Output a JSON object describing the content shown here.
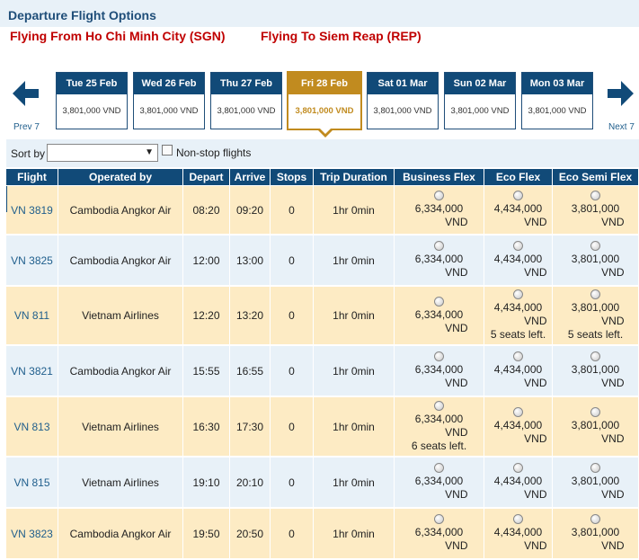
{
  "header": {
    "title": "Departure Flight Options",
    "from": "Flying From Ho Chi Minh City (SGN)",
    "to": "Flying To Siem Reap (REP)"
  },
  "nav": {
    "prev": "Prev 7",
    "next": "Next 7"
  },
  "dates": [
    {
      "label": "Tue 25 Feb",
      "price": "3,801,000 VND",
      "selected": false
    },
    {
      "label": "Wed 26 Feb",
      "price": "3,801,000 VND",
      "selected": false
    },
    {
      "label": "Thu 27 Feb",
      "price": "3,801,000 VND",
      "selected": false
    },
    {
      "label": "Fri 28 Feb",
      "price": "3,801,000 VND",
      "selected": true
    },
    {
      "label": "Sat 01 Mar",
      "price": "3,801,000 VND",
      "selected": false
    },
    {
      "label": "Sun 02 Mar",
      "price": "3,801,000 VND",
      "selected": false
    },
    {
      "label": "Mon 03 Mar",
      "price": "3,801,000 VND",
      "selected": false
    }
  ],
  "sort": {
    "label": "Sort by",
    "value": "",
    "nonstop_label": "Non-stop flights"
  },
  "columns": [
    "Flight",
    "Operated by",
    "Depart",
    "Arrive",
    "Stops",
    "Trip Duration",
    "Business Flex",
    "Eco Flex",
    "Eco Semi Flex"
  ],
  "flights": [
    {
      "flight": "VN 3819",
      "operator": "Cambodia Angkor Air",
      "depart": "08:20",
      "arrive": "09:20",
      "stops": "0",
      "duration": "1hr 0min",
      "fares": [
        {
          "amount": "6,334,000",
          "currency": "VND",
          "note": ""
        },
        {
          "amount": "4,434,000",
          "currency": "VND",
          "note": ""
        },
        {
          "amount": "3,801,000",
          "currency": "VND",
          "note": ""
        }
      ]
    },
    {
      "flight": "VN 3825",
      "operator": "Cambodia Angkor Air",
      "depart": "12:00",
      "arrive": "13:00",
      "stops": "0",
      "duration": "1hr 0min",
      "fares": [
        {
          "amount": "6,334,000",
          "currency": "VND",
          "note": ""
        },
        {
          "amount": "4,434,000",
          "currency": "VND",
          "note": ""
        },
        {
          "amount": "3,801,000",
          "currency": "VND",
          "note": ""
        }
      ]
    },
    {
      "flight": "VN 811",
      "operator": "Vietnam Airlines",
      "depart": "12:20",
      "arrive": "13:20",
      "stops": "0",
      "duration": "1hr 0min",
      "fares": [
        {
          "amount": "6,334,000",
          "currency": "VND",
          "note": ""
        },
        {
          "amount": "4,434,000",
          "currency": "VND",
          "note": "5 seats left."
        },
        {
          "amount": "3,801,000",
          "currency": "VND",
          "note": "5 seats left."
        }
      ]
    },
    {
      "flight": "VN 3821",
      "operator": "Cambodia Angkor Air",
      "depart": "15:55",
      "arrive": "16:55",
      "stops": "0",
      "duration": "1hr 0min",
      "fares": [
        {
          "amount": "6,334,000",
          "currency": "VND",
          "note": ""
        },
        {
          "amount": "4,434,000",
          "currency": "VND",
          "note": ""
        },
        {
          "amount": "3,801,000",
          "currency": "VND",
          "note": ""
        }
      ]
    },
    {
      "flight": "VN 813",
      "operator": "Vietnam Airlines",
      "depart": "16:30",
      "arrive": "17:30",
      "stops": "0",
      "duration": "1hr 0min",
      "fares": [
        {
          "amount": "6,334,000",
          "currency": "VND",
          "note": "6 seats left."
        },
        {
          "amount": "4,434,000",
          "currency": "VND",
          "note": ""
        },
        {
          "amount": "3,801,000",
          "currency": "VND",
          "note": ""
        }
      ]
    },
    {
      "flight": "VN 815",
      "operator": "Vietnam Airlines",
      "depart": "19:10",
      "arrive": "20:10",
      "stops": "0",
      "duration": "1hr 0min",
      "fares": [
        {
          "amount": "6,334,000",
          "currency": "VND",
          "note": ""
        },
        {
          "amount": "4,434,000",
          "currency": "VND",
          "note": ""
        },
        {
          "amount": "3,801,000",
          "currency": "VND",
          "note": ""
        }
      ]
    },
    {
      "flight": "VN 3823",
      "operator": "Cambodia Angkor Air",
      "depart": "19:50",
      "arrive": "20:50",
      "stops": "0",
      "duration": "1hr 0min",
      "fares": [
        {
          "amount": "6,334,000",
          "currency": "VND",
          "note": ""
        },
        {
          "amount": "4,434,000",
          "currency": "VND",
          "note": ""
        },
        {
          "amount": "3,801,000",
          "currency": "VND",
          "note": ""
        }
      ]
    }
  ],
  "colors": {
    "navy": "#114a78",
    "gold": "#c18b1f",
    "route_red": "#c00000",
    "row_tan": "#fdebc4",
    "row_blue": "#e8f1f8"
  },
  "icons": {
    "prev": "arrow-left-icon",
    "next": "arrow-right-icon",
    "select": "triangle-down"
  }
}
